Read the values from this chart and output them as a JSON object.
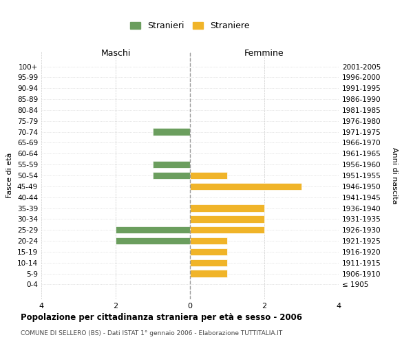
{
  "age_groups": [
    "100+",
    "95-99",
    "90-94",
    "85-89",
    "80-84",
    "75-79",
    "70-74",
    "65-69",
    "60-64",
    "55-59",
    "50-54",
    "45-49",
    "40-44",
    "35-39",
    "30-34",
    "25-29",
    "20-24",
    "15-19",
    "10-14",
    "5-9",
    "0-4"
  ],
  "birth_years": [
    "≤ 1905",
    "1906-1910",
    "1911-1915",
    "1916-1920",
    "1921-1925",
    "1926-1930",
    "1931-1935",
    "1936-1940",
    "1941-1945",
    "1946-1950",
    "1951-1955",
    "1956-1960",
    "1961-1965",
    "1966-1970",
    "1971-1975",
    "1976-1980",
    "1981-1985",
    "1986-1990",
    "1991-1995",
    "1996-2000",
    "2001-2005"
  ],
  "maschi": [
    0,
    0,
    0,
    0,
    0,
    0,
    1,
    0,
    0,
    1,
    1,
    0,
    0,
    0,
    0,
    2,
    2,
    0,
    0,
    0,
    0
  ],
  "femmine": [
    0,
    0,
    0,
    0,
    0,
    0,
    0,
    0,
    0,
    0,
    1,
    3,
    0,
    2,
    2,
    2,
    1,
    1,
    1,
    1,
    0
  ],
  "color_maschi": "#6b9e5e",
  "color_femmine": "#f0b429",
  "title_main": "Popolazione per cittadinanza straniera per età e sesso - 2006",
  "title_sub": "COMUNE DI SELLERO (BS) - Dati ISTAT 1° gennaio 2006 - Elaborazione TUTTITALIA.IT",
  "label_maschi": "Stranieri",
  "label_femmine": "Straniere",
  "label_left": "Maschi",
  "label_right": "Femmine",
  "ylabel": "Fasce di età",
  "ylabel_right": "Anni di nascita",
  "xlim": 4,
  "bg_color": "#ffffff",
  "grid_color": "#cccccc"
}
